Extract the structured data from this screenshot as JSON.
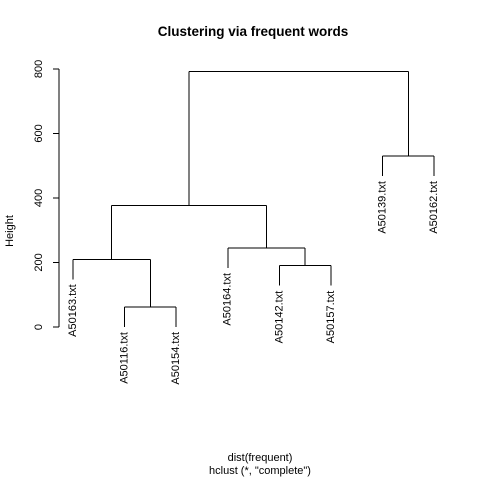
{
  "chart_data": {
    "type": "dendrogram",
    "title": "Clustering via frequent words",
    "ylabel": "Height",
    "xlabel": "dist(frequent)",
    "sublabel": "hclust (*, \"complete\")",
    "ylim": [
      0,
      800
    ],
    "yticks": [
      0,
      200,
      400,
      600,
      800
    ],
    "leaves": [
      "A50163.txt",
      "A50116.txt",
      "A50154.txt",
      "A50164.txt",
      "A50142.txt",
      "A50157.txt",
      "A50139.txt",
      "A50162.txt"
    ],
    "merges": [
      {
        "left": "A50116.txt",
        "right": "A50154.txt",
        "height": 62
      },
      {
        "left": "A50142.txt",
        "right": "A50157.txt",
        "height": 190
      },
      {
        "left": "A50163.txt",
        "right": "c1",
        "height": 210
      },
      {
        "left": "A50164.txt",
        "right": "c2",
        "height": 245
      },
      {
        "left": "c3",
        "right": "c4",
        "height": 377
      },
      {
        "left": "A50139.txt",
        "right": "A50162.txt",
        "height": 530
      },
      {
        "left": "c5",
        "right": "c6",
        "height": 792
      }
    ]
  }
}
